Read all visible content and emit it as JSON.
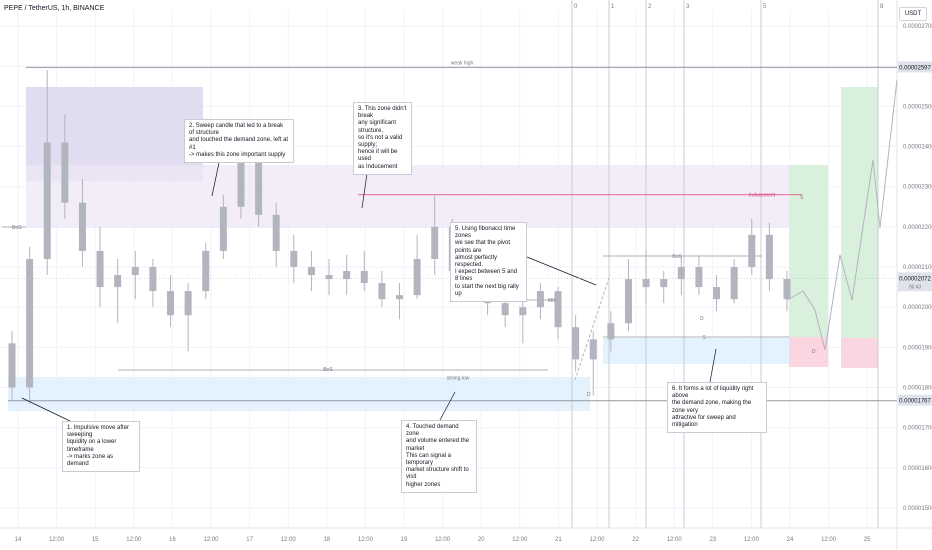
{
  "header": {
    "symbol_title": "PEPE / TetherUS, 1h, BINANCE"
  },
  "currency_button": "USDT",
  "price_tags": {
    "weak_high": "0.00002597",
    "current": "0.00002072",
    "countdown": "06:43",
    "strong_low": "0.00001767"
  },
  "labels": {
    "weak_high": "weak high",
    "strong_low": "strong low",
    "inducement": "Inducement",
    "bos_left": "BoS",
    "bos_mid": "BoS",
    "bos_right": "BoS",
    "mid": "MID",
    "s_right": "S",
    "s_green": "S",
    "d_right": "D",
    "d_left": "D",
    "d_pink": "D"
  },
  "annotations": [
    "1. Impulsive move after sweeping\nliquidity on a lower timeframe\n-> marks zone as demand",
    "2. Sweep candle that led to a break of structure\nand touched the demand zone, left at #1\n-> makes this zone important supply",
    "3. This zone didn't break\nany significant structure,\nso it's not a valid supply;\nhence it will be used\nas Inducement",
    "4. Touched demand zone\nand volume entered the market\nThis can signal a temporary\nmarket structure shift to visit\nhigher zones",
    "5. Using fibonacci time zones\nwe see that the pivot points are\nalmost perfectly respected.\nI expect between 5 and 8 lines\nto start the next big rally up",
    "6. It forms a lot of liquidity right above\nthe demand zone, making the zone very\nattractive for sweep and mitigation"
  ],
  "fib_labels": [
    "0",
    "1",
    "2",
    "3",
    "5",
    "8"
  ],
  "colors": {
    "candle": "#b2b5be",
    "grid": "#f0f3fa",
    "text": "#131722",
    "axis_text": "#787b86",
    "weak_high_line": "#9598a1",
    "inducement_line": "#e04070",
    "fib_line": "#c9ccd4",
    "supply_zone": "#ede7f6",
    "supply_zone_strong": "#e1dcef",
    "demand_zone": "#e3f2fd",
    "green_zone": "#d8f0dc",
    "pink_zone": "#fbd6e0",
    "projection": "#b2b5be"
  },
  "chart_data": {
    "type": "candlestick",
    "x": [
      "14",
      "12:00",
      "15",
      "12:00",
      "16",
      "12:00",
      "17",
      "12:00",
      "18",
      "12:00",
      "19",
      "12:00",
      "20",
      "12:00",
      "21",
      "12:00",
      "22",
      "12:00",
      "23",
      "12:00",
      "24",
      "12:00",
      "25"
    ],
    "y_ticks": [
      "0.00002700",
      "0.00002600",
      "0.00002500",
      "0.00002400",
      "0.00002300",
      "0.00002200",
      "0.00002100",
      "0.00002000",
      "0.00001900",
      "0.00001800",
      "0.00001700",
      "0.00001600",
      "0.00001500"
    ],
    "ylim": [
      1.48e-05,
      2.74e-05
    ],
    "levels": {
      "weak_high": 2.597e-05,
      "strong_low": 1.767e-05,
      "current": 2.072e-05,
      "inducement": 2.28e-05
    },
    "series": [
      {
        "values": [
          {
            "o": 1.91e-05,
            "h": 1.94e-05,
            "l": 1.77e-05,
            "c": 1.8e-05
          },
          {
            "o": 1.8e-05,
            "h": 2.15e-05,
            "l": 1.76e-05,
            "c": 2.12e-05
          },
          {
            "o": 2.12e-05,
            "h": 2.59e-05,
            "l": 2.08e-05,
            "c": 2.41e-05
          },
          {
            "o": 2.41e-05,
            "h": 2.48e-05,
            "l": 2.22e-05,
            "c": 2.26e-05
          },
          {
            "o": 2.26e-05,
            "h": 2.32e-05,
            "l": 2.1e-05,
            "c": 2.14e-05
          },
          {
            "o": 2.14e-05,
            "h": 2.2e-05,
            "l": 2e-05,
            "c": 2.05e-05
          },
          {
            "o": 2.05e-05,
            "h": 2.12e-05,
            "l": 1.96e-05,
            "c": 2.08e-05
          },
          {
            "o": 2.08e-05,
            "h": 2.14e-05,
            "l": 2.02e-05,
            "c": 2.1e-05
          },
          {
            "o": 2.1e-05,
            "h": 2.12e-05,
            "l": 2e-05,
            "c": 2.04e-05
          },
          {
            "o": 2.04e-05,
            "h": 2.08e-05,
            "l": 1.95e-05,
            "c": 1.98e-05
          },
          {
            "o": 1.98e-05,
            "h": 2.06e-05,
            "l": 1.89e-05,
            "c": 2.04e-05
          },
          {
            "o": 2.04e-05,
            "h": 2.16e-05,
            "l": 2.02e-05,
            "c": 2.14e-05
          },
          {
            "o": 2.14e-05,
            "h": 2.28e-05,
            "l": 2.12e-05,
            "c": 2.25e-05
          },
          {
            "o": 2.25e-05,
            "h": 2.43e-05,
            "l": 2.22e-05,
            "c": 2.36e-05
          },
          {
            "o": 2.36e-05,
            "h": 2.4e-05,
            "l": 2.2e-05,
            "c": 2.23e-05
          },
          {
            "o": 2.23e-05,
            "h": 2.26e-05,
            "l": 2.1e-05,
            "c": 2.14e-05
          },
          {
            "o": 2.14e-05,
            "h": 2.18e-05,
            "l": 2.06e-05,
            "c": 2.1e-05
          },
          {
            "o": 2.1e-05,
            "h": 2.14e-05,
            "l": 2.04e-05,
            "c": 2.08e-05
          },
          {
            "o": 2.08e-05,
            "h": 2.12e-05,
            "l": 2.03e-05,
            "c": 2.07e-05
          },
          {
            "o": 2.07e-05,
            "h": 2.13e-05,
            "l": 2.03e-05,
            "c": 2.09e-05
          },
          {
            "o": 2.09e-05,
            "h": 2.14e-05,
            "l": 2.04e-05,
            "c": 2.06e-05
          },
          {
            "o": 2.06e-05,
            "h": 2.09e-05,
            "l": 2e-05,
            "c": 2.02e-05
          },
          {
            "o": 2.02e-05,
            "h": 2.06e-05,
            "l": 1.97e-05,
            "c": 2.03e-05
          },
          {
            "o": 2.03e-05,
            "h": 2.18e-05,
            "l": 2.02e-05,
            "c": 2.12e-05
          },
          {
            "o": 2.12e-05,
            "h": 2.28e-05,
            "l": 2.08e-05,
            "c": 2.2e-05
          },
          {
            "o": 2.2e-05,
            "h": 2.22e-05,
            "l": 2.06e-05,
            "c": 2.09e-05
          },
          {
            "o": 2.09e-05,
            "h": 2.14e-05,
            "l": 2.03e-05,
            "c": 2.08e-05
          },
          {
            "o": 2.08e-05,
            "h": 2.11e-05,
            "l": 1.98e-05,
            "c": 2.01e-05
          },
          {
            "o": 2.01e-05,
            "h": 2.05e-05,
            "l": 1.95e-05,
            "c": 1.98e-05
          },
          {
            "o": 1.98e-05,
            "h": 2.03e-05,
            "l": 1.91e-05,
            "c": 2e-05
          },
          {
            "o": 2e-05,
            "h": 2.06e-05,
            "l": 1.97e-05,
            "c": 2.04e-05
          },
          {
            "o": 2.04e-05,
            "h": 2.05e-05,
            "l": 1.92e-05,
            "c": 1.95e-05
          },
          {
            "o": 1.95e-05,
            "h": 1.98e-05,
            "l": 1.84e-05,
            "c": 1.87e-05
          },
          {
            "o": 1.87e-05,
            "h": 1.94e-05,
            "l": 1.78e-05,
            "c": 1.92e-05
          },
          {
            "o": 1.92e-05,
            "h": 1.99e-05,
            "l": 1.89e-05,
            "c": 1.96e-05
          },
          {
            "o": 1.96e-05,
            "h": 2.12e-05,
            "l": 1.94e-05,
            "c": 2.07e-05
          },
          {
            "o": 2.07e-05,
            "h": 2.14e-05,
            "l": 2.01e-05,
            "c": 2.05e-05
          },
          {
            "o": 2.05e-05,
            "h": 2.09e-05,
            "l": 2.01e-05,
            "c": 2.07e-05
          },
          {
            "o": 2.07e-05,
            "h": 2.13e-05,
            "l": 2.03e-05,
            "c": 2.1e-05
          },
          {
            "o": 2.1e-05,
            "h": 2.13e-05,
            "l": 2.03e-05,
            "c": 2.05e-05
          },
          {
            "o": 2.05e-05,
            "h": 2.08e-05,
            "l": 1.99e-05,
            "c": 2.02e-05
          },
          {
            "o": 2.02e-05,
            "h": 2.12e-05,
            "l": 2.01e-05,
            "c": 2.1e-05
          },
          {
            "o": 2.1e-05,
            "h": 2.22e-05,
            "l": 2.08e-05,
            "c": 2.18e-05
          },
          {
            "o": 2.18e-05,
            "h": 2.21e-05,
            "l": 2.04e-05,
            "c": 2.07e-05
          },
          {
            "o": 2.07e-05,
            "h": 2.09e-05,
            "l": 1.99e-05,
            "c": 2.02e-05
          }
        ]
      }
    ]
  }
}
